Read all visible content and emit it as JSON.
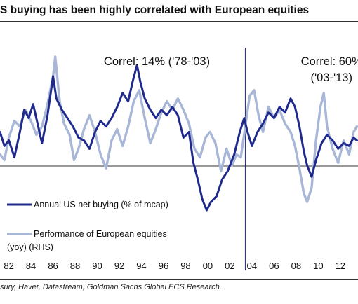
{
  "title": "S buying has been highly correlated with European equities",
  "source": "sury, Haver, Datastream, Goldman Sachs Global ECS Research.",
  "colors": {
    "us_buying": "#1f2a8c",
    "eu_perf": "#a8b7d8",
    "axis": "#333333"
  },
  "chart_data": {
    "type": "line",
    "title": "",
    "xlabel": "",
    "ylabel": "",
    "xlim": [
      1981.2,
      2013.6
    ],
    "x_ticks": [
      "82",
      "84",
      "86",
      "88",
      "90",
      "92",
      "94",
      "96",
      "98",
      "00",
      "02",
      "04",
      "06",
      "08",
      "10",
      "12"
    ],
    "x_tick_years": [
      1982,
      1984,
      1986,
      1988,
      1990,
      1992,
      1994,
      1996,
      1998,
      2000,
      2002,
      2004,
      2006,
      2008,
      2010,
      2012
    ],
    "divider_year": 2003.4,
    "annotations": [
      {
        "text": "Correl: 14% ('78-'03)",
        "year": 1995.4
      },
      {
        "text": "Correl: 60%",
        "year": 2011.2
      },
      {
        "text": "('03-'13)",
        "year": 2011.2
      }
    ],
    "legend_placement": "lower-left",
    "series": [
      {
        "name": "Annual US net buying (% of mcap)",
        "legend_lines": [
          "Annual US net buying (% of mcap)"
        ],
        "axis": "left",
        "ylim": [
          -0.1,
          0.5
        ],
        "points": [
          [
            1981.2,
            0.22
          ],
          [
            1981.6,
            0.17
          ],
          [
            1982.0,
            0.19
          ],
          [
            1982.5,
            0.13
          ],
          [
            1983.0,
            0.22
          ],
          [
            1983.4,
            0.3
          ],
          [
            1983.8,
            0.27
          ],
          [
            1984.2,
            0.32
          ],
          [
            1984.6,
            0.25
          ],
          [
            1985.0,
            0.18
          ],
          [
            1985.5,
            0.28
          ],
          [
            1986.0,
            0.42
          ],
          [
            1986.3,
            0.34
          ],
          [
            1986.8,
            0.3
          ],
          [
            1987.3,
            0.27
          ],
          [
            1987.8,
            0.24
          ],
          [
            1988.3,
            0.2
          ],
          [
            1988.8,
            0.19
          ],
          [
            1989.3,
            0.16
          ],
          [
            1989.8,
            0.22
          ],
          [
            1990.3,
            0.26
          ],
          [
            1990.8,
            0.24
          ],
          [
            1991.3,
            0.27
          ],
          [
            1991.8,
            0.31
          ],
          [
            1992.3,
            0.36
          ],
          [
            1992.8,
            0.33
          ],
          [
            1993.2,
            0.4
          ],
          [
            1993.6,
            0.46
          ],
          [
            1993.9,
            0.4
          ],
          [
            1994.3,
            0.34
          ],
          [
            1994.8,
            0.3
          ],
          [
            1995.3,
            0.27
          ],
          [
            1995.8,
            0.3
          ],
          [
            1996.3,
            0.28
          ],
          [
            1996.8,
            0.31
          ],
          [
            1997.3,
            0.28
          ],
          [
            1997.8,
            0.2
          ],
          [
            1998.3,
            0.22
          ],
          [
            1998.7,
            0.11
          ],
          [
            1999.1,
            0.05
          ],
          [
            1999.5,
            -0.02
          ],
          [
            1999.9,
            -0.06
          ],
          [
            2000.3,
            -0.03
          ],
          [
            2000.8,
            -0.01
          ],
          [
            2001.3,
            0.05
          ],
          [
            2001.8,
            0.08
          ],
          [
            2002.4,
            0.14
          ],
          [
            2002.9,
            0.22
          ],
          [
            2003.3,
            0.27
          ],
          [
            2003.6,
            0.22
          ],
          [
            2004.0,
            0.17
          ],
          [
            2004.5,
            0.22
          ],
          [
            2005.0,
            0.25
          ],
          [
            2005.5,
            0.29
          ],
          [
            2006.0,
            0.27
          ],
          [
            2006.5,
            0.31
          ],
          [
            2007.0,
            0.29
          ],
          [
            2007.5,
            0.34
          ],
          [
            2007.9,
            0.31
          ],
          [
            2008.3,
            0.24
          ],
          [
            2008.7,
            0.15
          ],
          [
            2009.0,
            0.1
          ],
          [
            2009.4,
            0.06
          ],
          [
            2009.8,
            0.12
          ],
          [
            2010.3,
            0.18
          ],
          [
            2010.8,
            0.21
          ],
          [
            2011.3,
            0.19
          ],
          [
            2011.8,
            0.16
          ],
          [
            2012.3,
            0.18
          ],
          [
            2012.8,
            0.17
          ],
          [
            2013.2,
            0.2
          ],
          [
            2013.5,
            0.19
          ]
        ]
      },
      {
        "name": "Performance of European equities (yoy) (RHS)",
        "legend_lines": [
          "Performance of European equities",
          "(yoy) (RHS)"
        ],
        "axis": "right",
        "ylim": [
          -0.1,
          0.5
        ],
        "points": [
          [
            1981.2,
            0.14
          ],
          [
            1981.6,
            0.12
          ],
          [
            1982.0,
            0.2
          ],
          [
            1982.5,
            0.26
          ],
          [
            1983.0,
            0.24
          ],
          [
            1983.5,
            0.3
          ],
          [
            1984.0,
            0.26
          ],
          [
            1984.5,
            0.21
          ],
          [
            1985.0,
            0.24
          ],
          [
            1985.5,
            0.32
          ],
          [
            1986.0,
            0.42
          ],
          [
            1986.2,
            0.49
          ],
          [
            1986.6,
            0.33
          ],
          [
            1987.0,
            0.25
          ],
          [
            1987.5,
            0.21
          ],
          [
            1987.9,
            0.12
          ],
          [
            1988.3,
            0.16
          ],
          [
            1988.8,
            0.23
          ],
          [
            1989.3,
            0.28
          ],
          [
            1989.8,
            0.22
          ],
          [
            1990.3,
            0.14
          ],
          [
            1990.8,
            0.09
          ],
          [
            1991.3,
            0.19
          ],
          [
            1991.8,
            0.23
          ],
          [
            1992.3,
            0.17
          ],
          [
            1992.8,
            0.24
          ],
          [
            1993.3,
            0.33
          ],
          [
            1993.8,
            0.37
          ],
          [
            1994.3,
            0.27
          ],
          [
            1994.8,
            0.18
          ],
          [
            1995.3,
            0.23
          ],
          [
            1995.8,
            0.29
          ],
          [
            1996.3,
            0.33
          ],
          [
            1996.8,
            0.3
          ],
          [
            1997.3,
            0.34
          ],
          [
            1997.8,
            0.3
          ],
          [
            1998.3,
            0.25
          ],
          [
            1998.8,
            0.16
          ],
          [
            1999.3,
            0.13
          ],
          [
            1999.8,
            0.2
          ],
          [
            2000.2,
            0.22
          ],
          [
            2000.7,
            0.18
          ],
          [
            2001.2,
            0.08
          ],
          [
            2001.7,
            0.16
          ],
          [
            2002.2,
            0.1
          ],
          [
            2002.6,
            0.14
          ],
          [
            2003.0,
            0.13
          ],
          [
            2003.4,
            0.24
          ],
          [
            2003.8,
            0.35
          ],
          [
            2004.2,
            0.37
          ],
          [
            2004.6,
            0.28
          ],
          [
            2005.0,
            0.22
          ],
          [
            2005.5,
            0.31
          ],
          [
            2006.0,
            0.27
          ],
          [
            2006.5,
            0.3
          ],
          [
            2007.0,
            0.25
          ],
          [
            2007.5,
            0.22
          ],
          [
            2007.9,
            0.17
          ],
          [
            2008.3,
            0.09
          ],
          [
            2008.7,
            0.0
          ],
          [
            2009.0,
            -0.03
          ],
          [
            2009.4,
            0.02
          ],
          [
            2009.8,
            0.19
          ],
          [
            2010.2,
            0.31
          ],
          [
            2010.5,
            0.36
          ],
          [
            2010.8,
            0.24
          ],
          [
            2011.3,
            0.16
          ],
          [
            2011.8,
            0.11
          ],
          [
            2012.3,
            0.19
          ],
          [
            2012.8,
            0.14
          ],
          [
            2013.2,
            0.22
          ],
          [
            2013.5,
            0.24
          ]
        ]
      }
    ]
  }
}
